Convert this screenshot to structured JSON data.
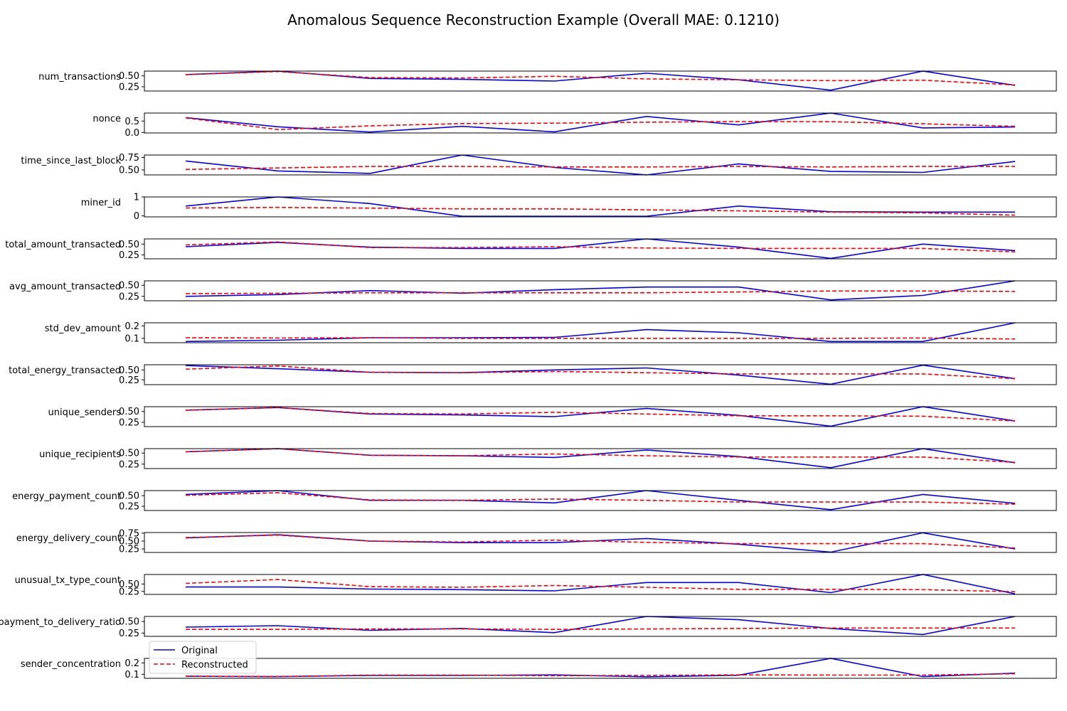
{
  "chart_data": {
    "type": "line",
    "title": "Anomalous Sequence Reconstruction Example (Overall MAE: 0.1210)",
    "x": [
      0,
      1,
      2,
      3,
      4,
      5,
      6,
      7,
      8,
      9
    ],
    "legend": {
      "placement": "lower-left of last subplot",
      "original_label": "Original",
      "reconstructed_label": "Reconstructed"
    },
    "colors": {
      "original": "#0000ff",
      "reconstructed": "#ff0000",
      "axes": "#000000"
    },
    "panels": [
      {
        "name": "num_transactions",
        "ylim": [
          0.15,
          0.61
        ],
        "ticks": [
          0.25,
          0.5
        ],
        "tick_labels": [
          "0.25",
          "0.50"
        ],
        "original": [
          0.53,
          0.61,
          0.44,
          0.42,
          0.38,
          0.56,
          0.41,
          0.17,
          0.61,
          0.28
        ],
        "reconstructed": [
          0.53,
          0.6,
          0.46,
          0.45,
          0.49,
          0.43,
          0.41,
          0.39,
          0.4,
          0.29
        ]
      },
      {
        "name": "nonce",
        "ylim": [
          -0.02,
          0.85
        ],
        "ticks": [
          0.0,
          0.5
        ],
        "tick_labels": [
          "0.0",
          "0.5"
        ],
        "original": [
          0.65,
          0.25,
          0.02,
          0.27,
          0.03,
          0.7,
          0.33,
          0.85,
          0.2,
          0.24
        ],
        "reconstructed": [
          0.64,
          0.13,
          0.29,
          0.39,
          0.41,
          0.45,
          0.48,
          0.47,
          0.38,
          0.27
        ]
      },
      {
        "name": "time_since_last_block",
        "ylim": [
          0.4,
          0.8
        ],
        "ticks": [
          0.5,
          0.75
        ],
        "tick_labels": [
          "0.50",
          "0.75"
        ],
        "original": [
          0.68,
          0.48,
          0.43,
          0.8,
          0.55,
          0.4,
          0.62,
          0.47,
          0.45,
          0.67
        ],
        "reconstructed": [
          0.51,
          0.54,
          0.57,
          0.57,
          0.56,
          0.56,
          0.57,
          0.56,
          0.57,
          0.57
        ]
      },
      {
        "name": "miner_id",
        "ylim": [
          -0.05,
          1.0
        ],
        "ticks": [
          0,
          1
        ],
        "tick_labels": [
          "0",
          "1"
        ],
        "original": [
          0.52,
          1.0,
          0.65,
          -0.02,
          -0.02,
          -0.02,
          0.52,
          0.22,
          0.2,
          0.2
        ],
        "reconstructed": [
          0.42,
          0.45,
          0.41,
          0.37,
          0.37,
          0.32,
          0.27,
          0.2,
          0.16,
          0.04
        ]
      },
      {
        "name": "total_amount_transacted",
        "ylim": [
          0.16,
          0.62
        ],
        "ticks": [
          0.25,
          0.5
        ],
        "tick_labels": [
          "0.25",
          "0.50"
        ],
        "original": [
          0.44,
          0.54,
          0.43,
          0.4,
          0.4,
          0.62,
          0.43,
          0.17,
          0.5,
          0.35
        ],
        "reconstructed": [
          0.48,
          0.55,
          0.42,
          0.42,
          0.44,
          0.41,
          0.4,
          0.4,
          0.4,
          0.32
        ]
      },
      {
        "name": "avg_amount_transacted",
        "ylim": [
          0.15,
          0.6
        ],
        "ticks": [
          0.25,
          0.5
        ],
        "tick_labels": [
          "0.25",
          "0.50"
        ],
        "original": [
          0.25,
          0.29,
          0.38,
          0.32,
          0.4,
          0.46,
          0.46,
          0.17,
          0.27,
          0.6
        ],
        "reconstructed": [
          0.31,
          0.32,
          0.33,
          0.33,
          0.33,
          0.33,
          0.35,
          0.37,
          0.37,
          0.36
        ]
      },
      {
        "name": "std_dev_amount",
        "ylim": [
          0.065,
          0.225
        ],
        "ticks": [
          0.1,
          0.2
        ],
        "tick_labels": [
          "0.1",
          "0.2"
        ],
        "original": [
          0.075,
          0.085,
          0.105,
          0.105,
          0.108,
          0.17,
          0.145,
          0.075,
          0.075,
          0.225
        ],
        "reconstructed": [
          0.105,
          0.103,
          0.105,
          0.1,
          0.1,
          0.1,
          0.1,
          0.1,
          0.103,
          0.095
        ]
      },
      {
        "name": "total_energy_transacted",
        "ylim": [
          0.13,
          0.63
        ],
        "ticks": [
          0.25,
          0.5
        ],
        "tick_labels": [
          "0.25",
          "0.50"
        ],
        "original": [
          0.61,
          0.53,
          0.44,
          0.43,
          0.5,
          0.55,
          0.37,
          0.14,
          0.62,
          0.28
        ],
        "reconstructed": [
          0.52,
          0.6,
          0.44,
          0.43,
          0.46,
          0.43,
          0.4,
          0.4,
          0.4,
          0.28
        ]
      },
      {
        "name": "unique_senders",
        "ylim": [
          0.15,
          0.61
        ],
        "ticks": [
          0.25,
          0.5
        ],
        "tick_labels": [
          "0.25",
          "0.50"
        ],
        "original": [
          0.53,
          0.59,
          0.44,
          0.42,
          0.38,
          0.57,
          0.41,
          0.16,
          0.61,
          0.28
        ],
        "reconstructed": [
          0.53,
          0.59,
          0.45,
          0.44,
          0.48,
          0.44,
          0.4,
          0.4,
          0.39,
          0.28
        ]
      },
      {
        "name": "unique_recipients",
        "ylim": [
          0.15,
          0.6
        ],
        "ticks": [
          0.25,
          0.5
        ],
        "tick_labels": [
          "0.25",
          "0.50"
        ],
        "original": [
          0.53,
          0.6,
          0.45,
          0.44,
          0.4,
          0.57,
          0.42,
          0.17,
          0.6,
          0.28
        ],
        "reconstructed": [
          0.53,
          0.6,
          0.45,
          0.44,
          0.48,
          0.44,
          0.41,
          0.41,
          0.41,
          0.29
        ]
      },
      {
        "name": "energy_payment_count",
        "ylim": [
          0.15,
          0.62
        ],
        "ticks": [
          0.25,
          0.5
        ],
        "tick_labels": [
          "0.25",
          "0.50"
        ],
        "original": [
          0.53,
          0.62,
          0.39,
          0.39,
          0.33,
          0.62,
          0.39,
          0.17,
          0.53,
          0.32
        ],
        "reconstructed": [
          0.51,
          0.57,
          0.4,
          0.39,
          0.42,
          0.39,
          0.35,
          0.35,
          0.35,
          0.3
        ]
      },
      {
        "name": "energy_delivery_count",
        "ylim": [
          0.14,
          0.77
        ],
        "ticks": [
          0.25,
          0.5,
          0.75
        ],
        "tick_labels": [
          "0.25",
          "0.50",
          "0.75"
        ],
        "original": [
          0.6,
          0.7,
          0.5,
          0.45,
          0.45,
          0.58,
          0.4,
          0.15,
          0.76,
          0.25
        ],
        "reconstructed": [
          0.61,
          0.69,
          0.5,
          0.47,
          0.53,
          0.46,
          0.42,
          0.42,
          0.42,
          0.28
        ]
      },
      {
        "name": "unusual_tx_type_count",
        "ylim": [
          0.15,
          0.82
        ],
        "ticks": [
          0.25,
          0.5
        ],
        "tick_labels": [
          "0.25",
          "0.50"
        ],
        "original": [
          0.4,
          0.4,
          0.33,
          0.31,
          0.27,
          0.55,
          0.55,
          0.21,
          0.82,
          0.17
        ],
        "reconstructed": [
          0.52,
          0.65,
          0.41,
          0.39,
          0.45,
          0.39,
          0.32,
          0.32,
          0.31,
          0.24
        ]
      },
      {
        "name": "payment_to_delivery_ratio",
        "ylim": [
          0.18,
          0.61
        ],
        "ticks": [
          0.25,
          0.5
        ],
        "tick_labels": [
          "0.25",
          "0.50"
        ],
        "original": [
          0.38,
          0.41,
          0.31,
          0.35,
          0.26,
          0.61,
          0.54,
          0.35,
          0.22,
          0.61
        ],
        "reconstructed": [
          0.33,
          0.33,
          0.34,
          0.34,
          0.33,
          0.34,
          0.35,
          0.36,
          0.36,
          0.36
        ]
      },
      {
        "name": "sender_concentration",
        "ylim": [
          0.065,
          0.24
        ],
        "ticks": [
          0.1,
          0.2
        ],
        "tick_labels": [
          "0.1",
          "0.2"
        ],
        "original": [
          0.083,
          0.08,
          0.09,
          0.09,
          0.095,
          0.078,
          0.092,
          0.24,
          0.08,
          0.11
        ],
        "reconstructed": [
          0.083,
          0.08,
          0.093,
          0.093,
          0.088,
          0.09,
          0.095,
          0.093,
          0.093,
          0.105
        ]
      }
    ]
  }
}
